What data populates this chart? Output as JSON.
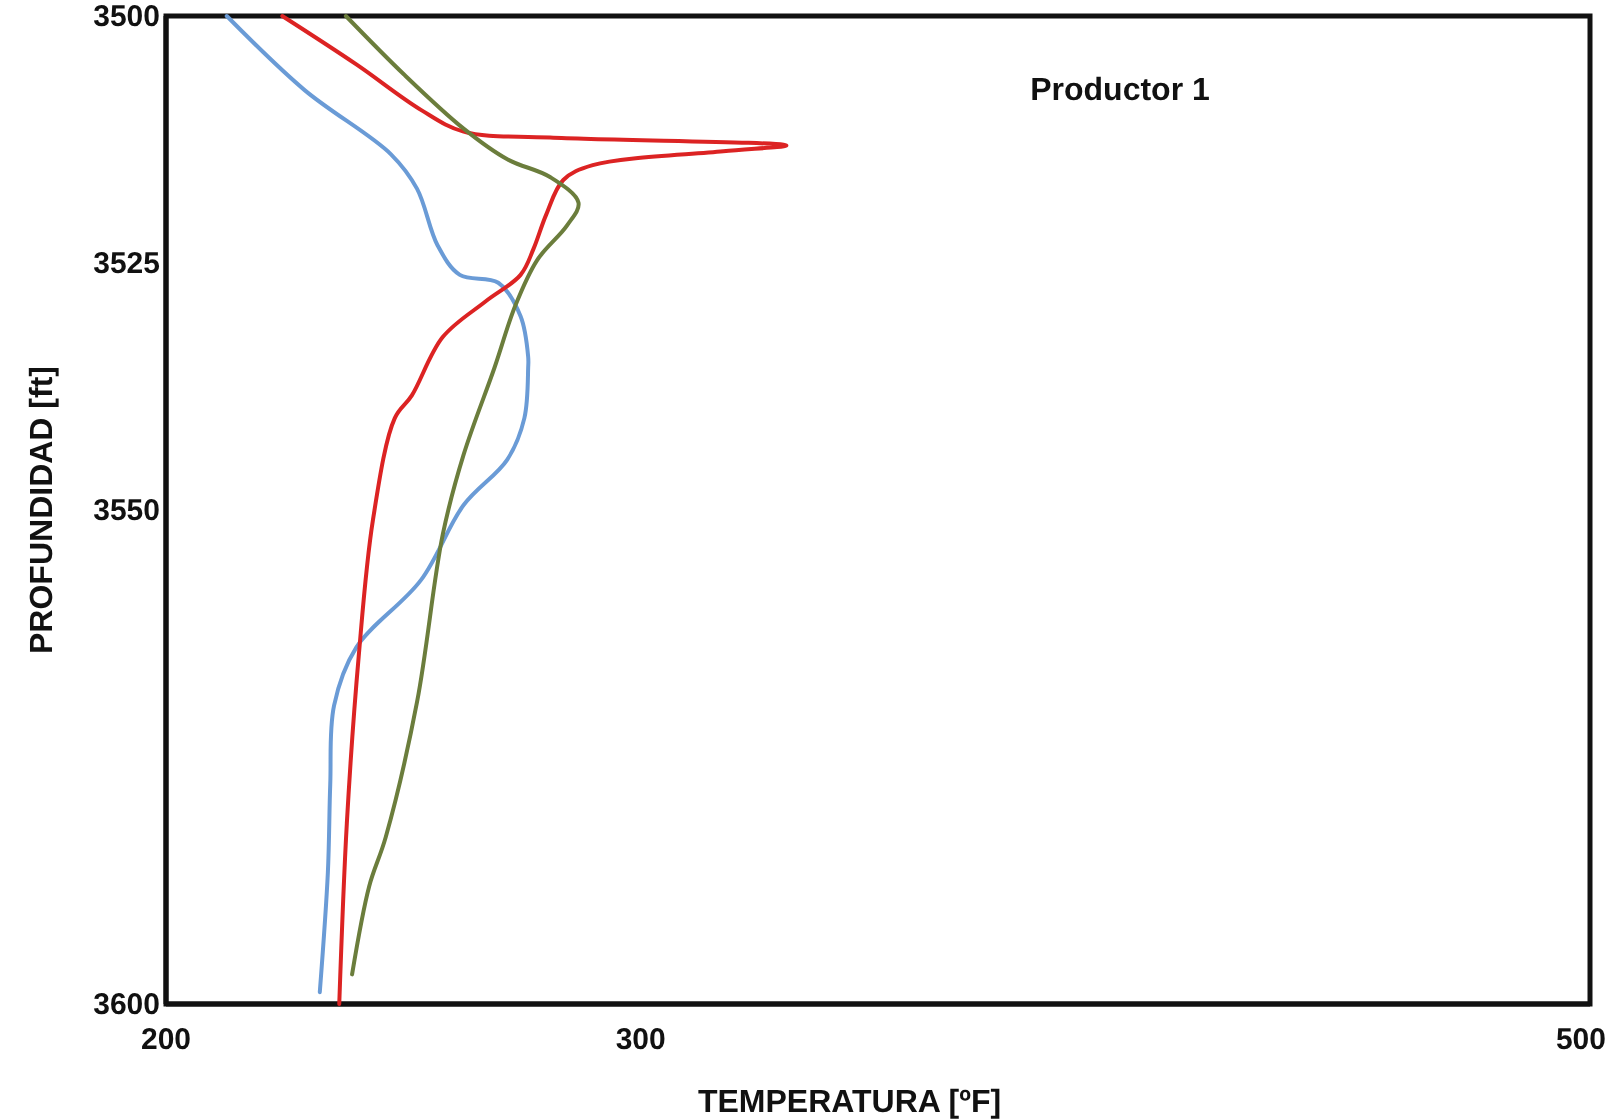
{
  "chart_data": {
    "type": "line",
    "title": "Productor 1",
    "xlabel": "TEMPERATURA [ºF]",
    "ylabel": "PROFUNDIDAD [ft]",
    "xlim": [
      200,
      500
    ],
    "xticks": [
      200,
      300,
      500
    ],
    "ylim": [
      3600,
      3500
    ],
    "yticks": [
      3500,
      3525,
      3550,
      3600
    ],
    "grid": false,
    "marker": "none",
    "line_style": "solid",
    "series": [
      {
        "color": "#6a9bd6",
        "x": [
          212.8,
          229.2,
          247.4,
          252.9,
          257.2,
          261.9,
          270.0,
          274.7,
          276.3,
          276.3,
          275.5,
          271.9,
          262.7,
          253.7,
          240.1,
          235.4,
          234.6,
          234.1,
          232.4
        ],
        "values": [
          3500,
          3507.5,
          3514.0,
          3517.5,
          3523.2,
          3526.2,
          3527.0,
          3530.4,
          3534.5,
          3535.6,
          3540.7,
          3544.9,
          3549.5,
          3557.1,
          3563.9,
          3569.8,
          3577.8,
          3586.7,
          3598.8
        ]
      },
      {
        "color": "#dc2323",
        "x": [
          224.5,
          240.1,
          253.7,
          262.7,
          280.9,
          330.7,
          317.4,
          289.9,
          283.7,
          280.1,
          277.4,
          274.7,
          267.3,
          258.3,
          251.8,
          248.2,
          243.6,
          240.6,
          238.1,
          236.5
        ],
        "values": [
          3500,
          3504.9,
          3509.5,
          3511.7,
          3512.3,
          3513.1,
          3513.7,
          3515.1,
          3516.6,
          3520.1,
          3523.6,
          3526.2,
          3528.9,
          3532.5,
          3538.4,
          3540.7,
          3551.0,
          3564.8,
          3581.7,
          3600
        ]
      },
      {
        "color": "#6b7d3c",
        "x": [
          237.9,
          250.1,
          262.7,
          271.9,
          280.9,
          286.9,
          284.5,
          278.2,
          273.6,
          269.2,
          262.7,
          258.3,
          252.9,
          246.3,
          242.8,
          239.2
        ],
        "values": [
          3500,
          3505.9,
          3511.4,
          3514.5,
          3516.3,
          3518.9,
          3521.2,
          3524.7,
          3529.3,
          3535.6,
          3544.4,
          3552.5,
          3569.4,
          3583.1,
          3588.1,
          3597.0
        ]
      }
    ]
  }
}
